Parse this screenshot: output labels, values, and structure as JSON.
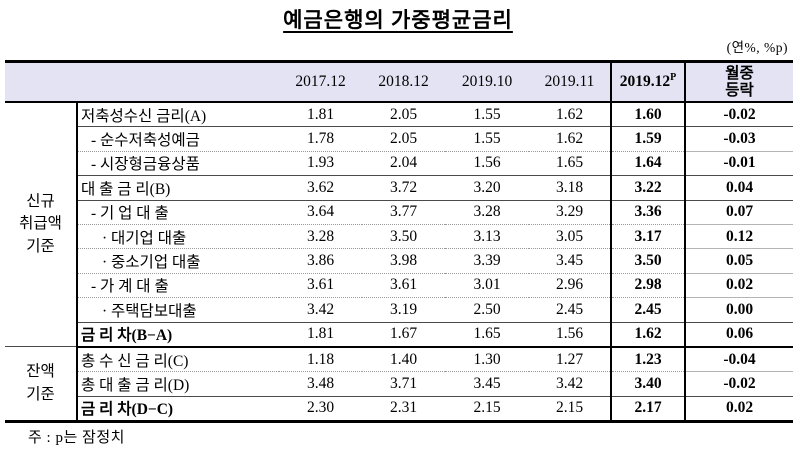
{
  "title": "예금은행의 가중평균금리",
  "unit_label": "(연%, %p)",
  "footnote": "주 : p는 잠정치",
  "columns": [
    {
      "label": "2017.12"
    },
    {
      "label": "2018.12"
    },
    {
      "label": "2019.10"
    },
    {
      "label": "2019.11"
    },
    {
      "label": "2019.12",
      "sup": "P"
    },
    {
      "label": "월중\n등락"
    }
  ],
  "groups": [
    {
      "label": "신규\n취급액\n기준",
      "rows": [
        {
          "label": "저축성수신 금리(A)",
          "values": [
            "1.81",
            "2.05",
            "1.55",
            "1.62",
            "1.60",
            "-0.02"
          ]
        },
        {
          "label": "- 순수저축성예금",
          "values": [
            "1.78",
            "2.05",
            "1.55",
            "1.62",
            "1.59",
            "-0.03"
          ]
        },
        {
          "label": "- 시장형금융상품",
          "values": [
            "1.93",
            "2.04",
            "1.56",
            "1.65",
            "1.64",
            "-0.01"
          ]
        },
        {
          "label": "대 출 금 리(B)",
          "values": [
            "3.62",
            "3.72",
            "3.20",
            "3.18",
            "3.22",
            "0.04"
          ]
        },
        {
          "label": "- 기 업 대 출",
          "values": [
            "3.64",
            "3.77",
            "3.28",
            "3.29",
            "3.36",
            "0.07"
          ]
        },
        {
          "label": "· 대기업 대출",
          "values": [
            "3.28",
            "3.50",
            "3.13",
            "3.05",
            "3.17",
            "0.12"
          ]
        },
        {
          "label": "· 중소기업 대출",
          "values": [
            "3.86",
            "3.98",
            "3.39",
            "3.45",
            "3.50",
            "0.05"
          ]
        },
        {
          "label": "- 가 계 대 출",
          "values": [
            "3.61",
            "3.61",
            "3.01",
            "2.96",
            "2.98",
            "0.02"
          ]
        },
        {
          "label": "· 주택담보대출",
          "values": [
            "3.42",
            "3.19",
            "2.50",
            "2.45",
            "2.45",
            "0.00"
          ]
        },
        {
          "label": "금 리 차(B−A)",
          "values": [
            "1.81",
            "1.67",
            "1.65",
            "1.56",
            "1.62",
            "0.06"
          ]
        }
      ]
    },
    {
      "label": "잔액\n기준",
      "rows": [
        {
          "label": "총 수 신 금 리(C)",
          "values": [
            "1.18",
            "1.40",
            "1.30",
            "1.27",
            "1.23",
            "-0.04"
          ]
        },
        {
          "label": "총 대 출 금 리(D)",
          "values": [
            "3.48",
            "3.71",
            "3.45",
            "3.42",
            "3.40",
            "-0.02"
          ]
        },
        {
          "label": "금 리 차(D−C)",
          "values": [
            "2.30",
            "2.31",
            "2.15",
            "2.15",
            "2.17",
            "0.02"
          ]
        }
      ]
    }
  ]
}
